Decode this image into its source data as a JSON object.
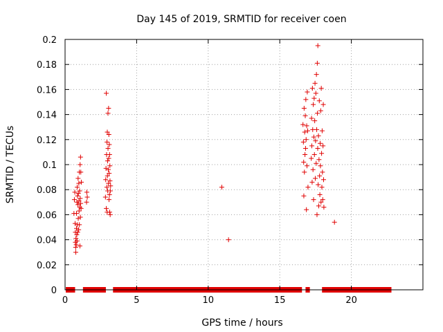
{
  "chart_data": {
    "type": "scatter",
    "title": "Day 145 of 2019, SRMTID for receiver coen",
    "xlabel": "GPS time / hours",
    "ylabel": "SRMTID / TECUs",
    "xlim": [
      0,
      25
    ],
    "ylim": [
      0,
      0.2
    ],
    "xticks": [
      0,
      5,
      10,
      15,
      20
    ],
    "xtick_labels": [
      "0",
      "5",
      "10",
      "15",
      "20"
    ],
    "yticks": [
      0,
      0.02,
      0.04,
      0.06,
      0.08,
      0.1,
      0.12,
      0.14,
      0.16,
      0.18,
      0.2
    ],
    "ytick_labels": [
      "0",
      "0.02",
      "0.04",
      "0.06",
      "0.08",
      "0.1",
      "0.12",
      "0.14",
      "0.16",
      "0.18",
      "0.2"
    ],
    "grid": true,
    "marker": "plus",
    "color": "#e00000",
    "series": [
      {
        "name": "SRMTID",
        "points": [
          [
            0.62,
            0.061
          ],
          [
            0.65,
            0.072
          ],
          [
            0.68,
            0.078
          ],
          [
            0.7,
            0.053
          ],
          [
            0.72,
            0.046
          ],
          [
            0.72,
            0.038
          ],
          [
            0.74,
            0.034
          ],
          [
            0.75,
            0.03
          ],
          [
            0.76,
            0.041
          ],
          [
            0.78,
            0.036
          ],
          [
            0.8,
            0.049
          ],
          [
            0.8,
            0.061
          ],
          [
            0.82,
            0.044
          ],
          [
            0.83,
            0.07
          ],
          [
            0.84,
            0.039
          ],
          [
            0.85,
            0.082
          ],
          [
            0.86,
            0.052
          ],
          [
            0.87,
            0.075
          ],
          [
            0.88,
            0.046
          ],
          [
            0.9,
            0.068
          ],
          [
            0.91,
            0.089
          ],
          [
            0.92,
            0.057
          ],
          [
            0.93,
            0.077
          ],
          [
            0.95,
            0.048
          ],
          [
            0.96,
            0.085
          ],
          [
            0.97,
            0.071
          ],
          [
            0.98,
            0.063
          ],
          [
            1.0,
            0.094
          ],
          [
            1.0,
            0.052
          ],
          [
            1.02,
            0.079
          ],
          [
            1.03,
            0.066
          ],
          [
            1.04,
            0.035
          ],
          [
            1.05,
            0.1
          ],
          [
            1.06,
            0.073
          ],
          [
            1.07,
            0.058
          ],
          [
            1.08,
            0.106
          ],
          [
            1.09,
            0.069
          ],
          [
            1.1,
            0.094
          ],
          [
            1.12,
            0.065
          ],
          [
            1.14,
            0.086
          ],
          [
            1.5,
            0.07
          ],
          [
            1.52,
            0.078
          ],
          [
            1.55,
            0.074
          ],
          [
            2.82,
            0.074
          ],
          [
            2.84,
            0.088
          ],
          [
            2.86,
            0.097
          ],
          [
            2.88,
            0.157
          ],
          [
            2.88,
            0.065
          ],
          [
            2.9,
            0.108
          ],
          [
            2.92,
            0.082
          ],
          [
            2.93,
            0.118
          ],
          [
            2.94,
            0.062
          ],
          [
            2.95,
            0.126
          ],
          [
            2.96,
            0.091
          ],
          [
            2.97,
            0.103
          ],
          [
            2.98,
            0.079
          ],
          [
            3.0,
            0.141
          ],
          [
            3.0,
            0.113
          ],
          [
            3.02,
            0.096
          ],
          [
            3.03,
            0.085
          ],
          [
            3.04,
            0.145
          ],
          [
            3.05,
            0.105
          ],
          [
            3.06,
            0.124
          ],
          [
            3.07,
            0.072
          ],
          [
            3.08,
            0.093
          ],
          [
            3.09,
            0.116
          ],
          [
            3.1,
            0.076
          ],
          [
            3.11,
            0.108
          ],
          [
            3.12,
            0.062
          ],
          [
            3.13,
            0.099
          ],
          [
            3.14,
            0.087
          ],
          [
            3.15,
            0.06
          ],
          [
            3.16,
            0.079
          ],
          [
            3.18,
            0.083
          ],
          [
            10.95,
            0.082
          ],
          [
            11.42,
            0.04
          ],
          [
            16.62,
            0.132
          ],
          [
            16.65,
            0.118
          ],
          [
            16.67,
            0.102
          ],
          [
            16.68,
            0.075
          ],
          [
            16.7,
            0.145
          ],
          [
            16.72,
            0.094
          ],
          [
            16.74,
            0.126
          ],
          [
            16.76,
            0.108
          ],
          [
            16.78,
            0.139
          ],
          [
            16.8,
            0.113
          ],
          [
            16.82,
            0.152
          ],
          [
            16.84,
            0.12
          ],
          [
            16.86,
            0.064
          ],
          [
            16.88,
            0.131
          ],
          [
            16.9,
            0.099
          ],
          [
            16.92,
            0.158
          ],
          [
            16.95,
            0.127
          ],
          [
            16.97,
            0.082
          ],
          [
            17.2,
            0.105
          ],
          [
            17.22,
            0.137
          ],
          [
            17.24,
            0.115
          ],
          [
            17.26,
            0.086
          ],
          [
            17.28,
            0.161
          ],
          [
            17.3,
            0.128
          ],
          [
            17.32,
            0.096
          ],
          [
            17.34,
            0.148
          ],
          [
            17.36,
            0.072
          ],
          [
            17.38,
            0.122
          ],
          [
            17.4,
            0.153
          ],
          [
            17.42,
            0.108
          ],
          [
            17.44,
            0.135
          ],
          [
            17.46,
            0.165
          ],
          [
            17.48,
            0.089
          ],
          [
            17.5,
            0.119
          ],
          [
            17.52,
            0.157
          ],
          [
            17.54,
            0.101
          ],
          [
            17.56,
            0.172
          ],
          [
            17.58,
            0.128
          ],
          [
            17.6,
            0.06
          ],
          [
            17.62,
            0.181
          ],
          [
            17.63,
            0.141
          ],
          [
            17.65,
            0.113
          ],
          [
            17.66,
            0.195
          ],
          [
            17.68,
            0.084
          ],
          [
            17.7,
            0.123
          ],
          [
            17.72,
            0.067
          ],
          [
            17.74,
            0.104
          ],
          [
            17.76,
            0.151
          ],
          [
            17.78,
            0.091
          ],
          [
            17.8,
            0.076
          ],
          [
            17.82,
            0.117
          ],
          [
            17.84,
            0.099
          ],
          [
            17.86,
            0.143
          ],
          [
            17.88,
            0.07
          ],
          [
            17.9,
            0.161
          ],
          [
            17.92,
            0.109
          ],
          [
            17.94,
            0.082
          ],
          [
            17.96,
            0.127
          ],
          [
            17.98,
            0.094
          ],
          [
            18.0,
            0.072
          ],
          [
            18.02,
            0.115
          ],
          [
            18.04,
            0.148
          ],
          [
            18.06,
            0.088
          ],
          [
            18.08,
            0.066
          ],
          [
            18.82,
            0.054
          ]
        ]
      }
    ],
    "baseline_bars": {
      "name": "zero-value markers at y = 0",
      "y": 0,
      "ranges": [
        [
          0.05,
          0.7
        ],
        [
          1.25,
          2.85
        ],
        [
          3.35,
          16.55
        ],
        [
          16.8,
          17.1
        ],
        [
          17.95,
          22.8
        ]
      ]
    }
  }
}
